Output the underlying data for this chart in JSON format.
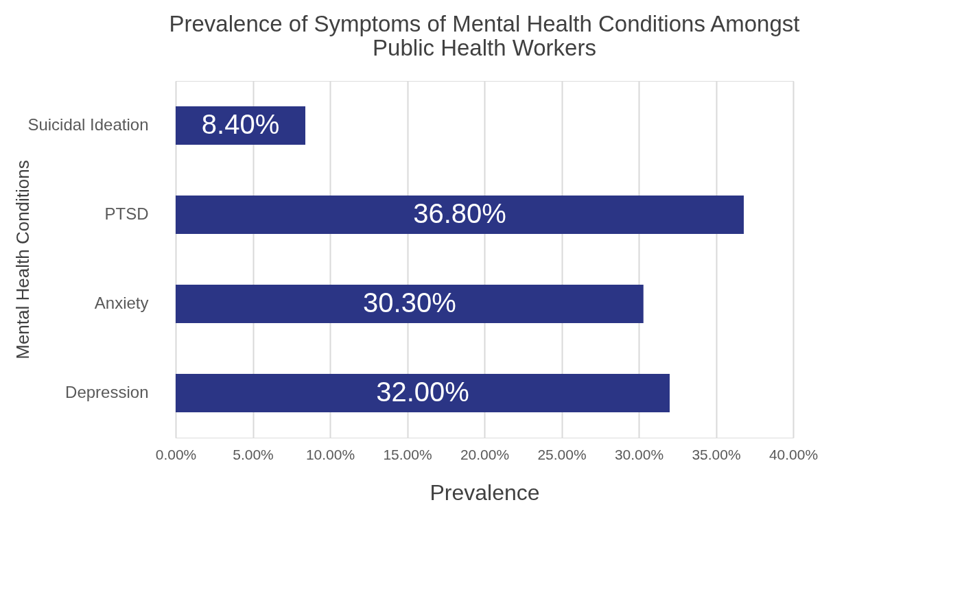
{
  "chart_data": {
    "type": "bar",
    "orientation": "horizontal",
    "title": "Prevalence of Symptoms of Mental Health Conditions Amongst Public Health Workers",
    "xlabel": "Prevalence",
    "ylabel": "Mental Health Conditions",
    "categories": [
      "Suicidal Ideation",
      "PTSD",
      "Anxiety",
      "Depression"
    ],
    "values": [
      8.4,
      36.8,
      30.3,
      32.0
    ],
    "value_labels": [
      "8.40%",
      "36.80%",
      "30.30%",
      "32.00%"
    ],
    "color": "#2b3585",
    "xlim": [
      0,
      40
    ],
    "xticks": [
      {
        "value": 0,
        "label": "0.00%"
      },
      {
        "value": 5,
        "label": "5.00%"
      },
      {
        "value": 10,
        "label": "10.00%"
      },
      {
        "value": 15,
        "label": "15.00%"
      },
      {
        "value": 20,
        "label": "20.00%"
      },
      {
        "value": 25,
        "label": "25.00%"
      },
      {
        "value": 30,
        "label": "30.00%"
      },
      {
        "value": 35,
        "label": "35.00%"
      },
      {
        "value": 40,
        "label": "40.00%"
      }
    ],
    "grid": "x"
  }
}
